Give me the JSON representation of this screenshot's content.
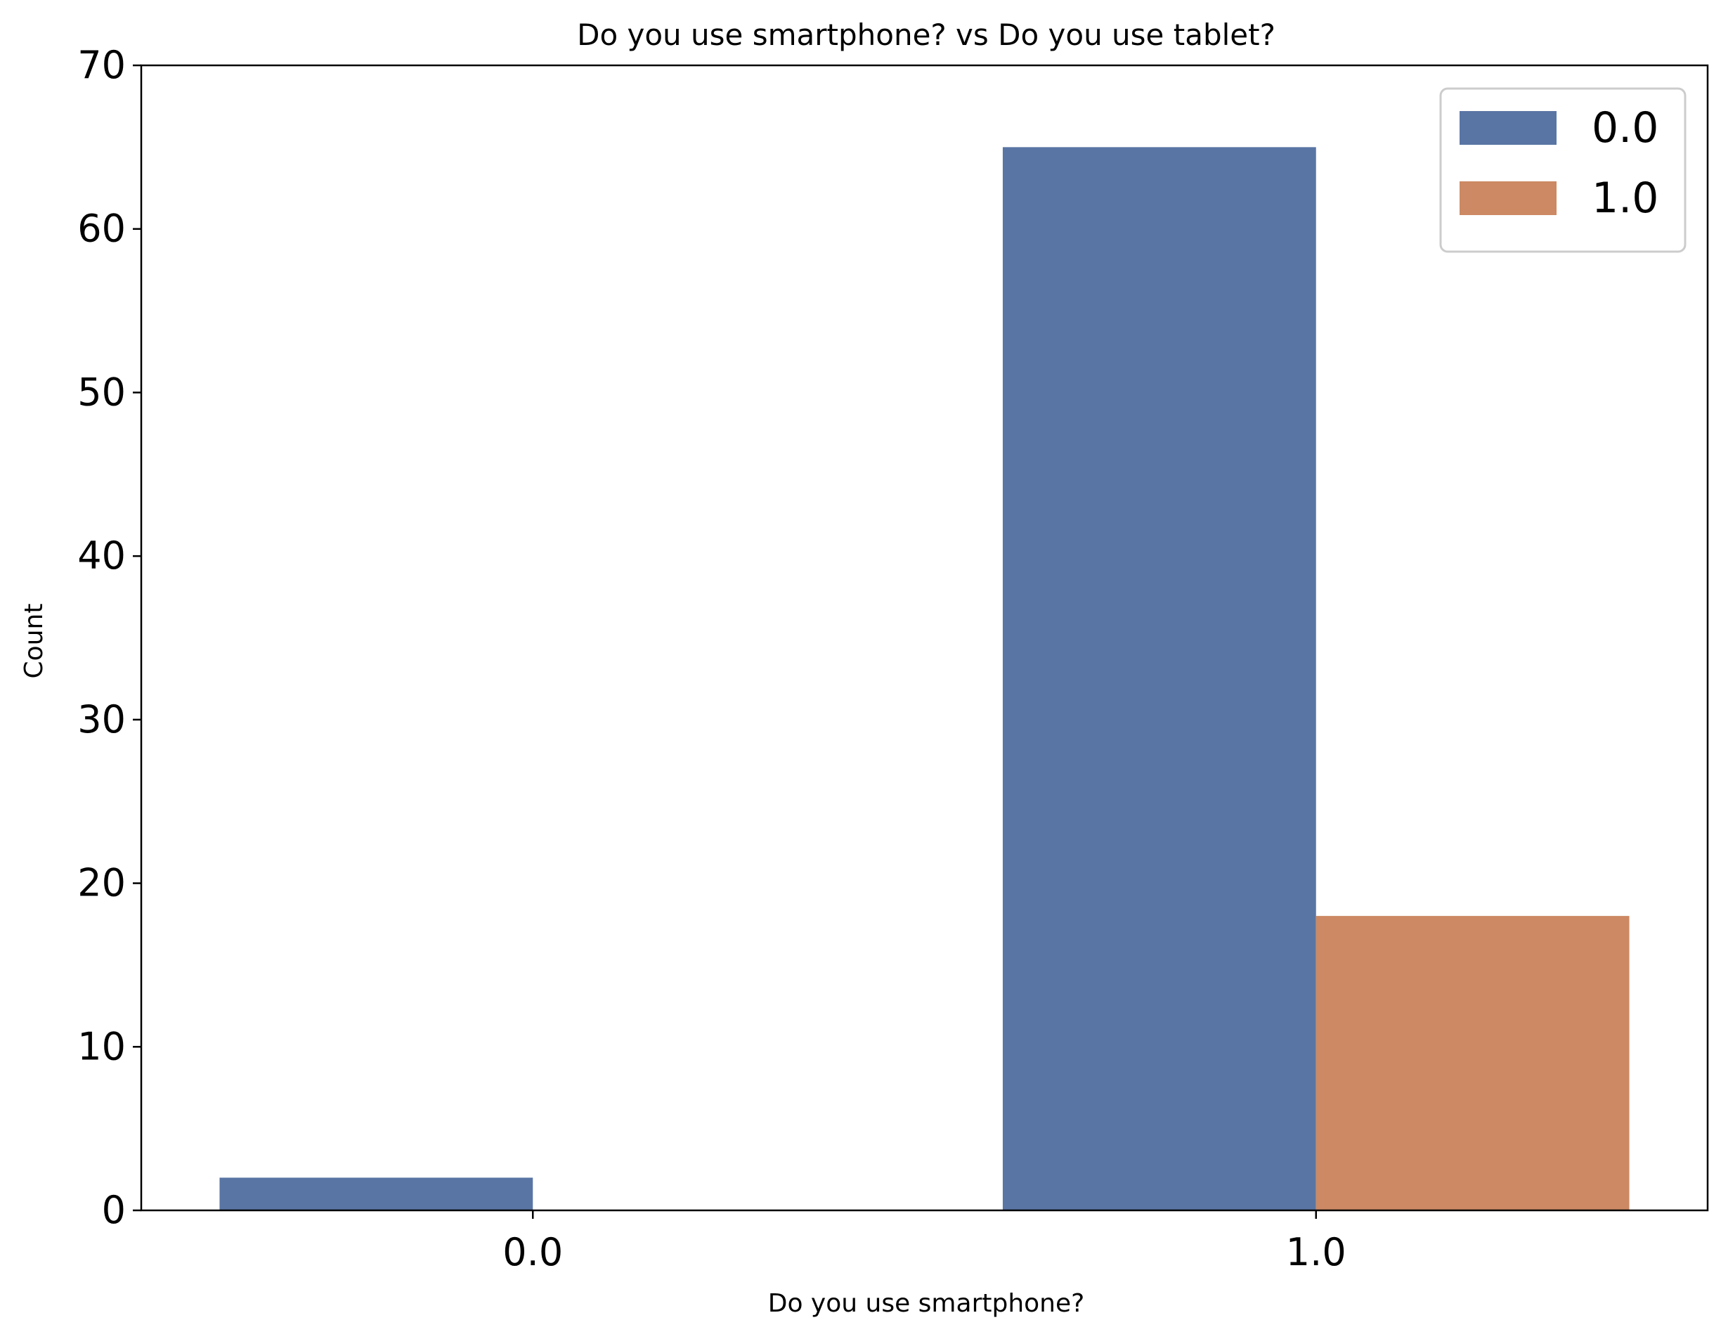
{
  "chart_data": {
    "type": "bar",
    "title": "Do you use smartphone? vs Do you use tablet?",
    "xlabel": "Do you use smartphone?",
    "ylabel": "Count",
    "categories": [
      "0.0",
      "1.0"
    ],
    "series": [
      {
        "name": "0.0",
        "values": [
          2,
          65
        ],
        "color": "#5975a4"
      },
      {
        "name": "1.0",
        "values": [
          0,
          18
        ],
        "color": "#cc8963"
      }
    ],
    "ylim": [
      0,
      70
    ],
    "yticks": [
      0,
      10,
      20,
      30,
      40,
      50,
      60,
      70
    ],
    "grid": false,
    "legend_position": "top-right"
  }
}
